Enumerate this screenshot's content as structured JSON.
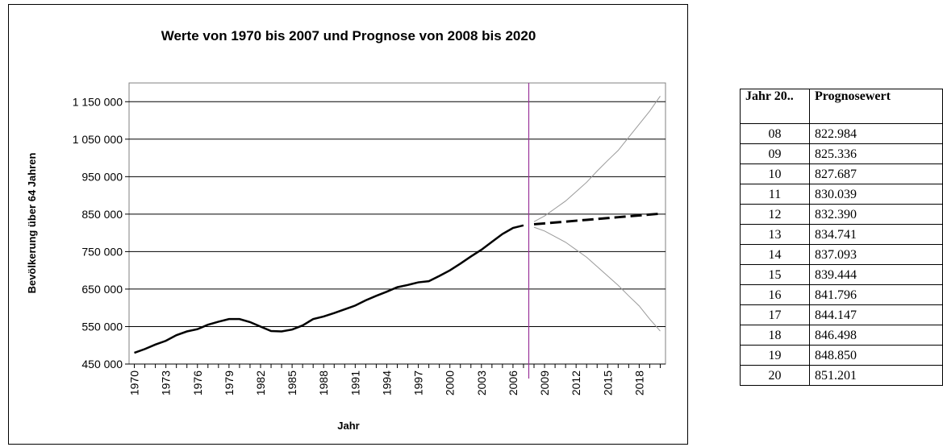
{
  "chart_data": {
    "type": "line",
    "title": "Werte von 1970 bis 2007 und Prognose von 2008 bis 2020",
    "xlabel": "Jahr",
    "ylabel": "Bevölkerung  über 64 Jahren",
    "x": [
      1970,
      1971,
      1972,
      1973,
      1974,
      1975,
      1976,
      1977,
      1978,
      1979,
      1980,
      1981,
      1982,
      1983,
      1984,
      1985,
      1986,
      1987,
      1988,
      1989,
      1990,
      1991,
      1992,
      1993,
      1994,
      1995,
      1996,
      1997,
      1998,
      1999,
      2000,
      2001,
      2002,
      2003,
      2004,
      2005,
      2006,
      2007,
      2008,
      2009,
      2010,
      2011,
      2012,
      2013,
      2014,
      2015,
      2016,
      2017,
      2018,
      2019,
      2020
    ],
    "xlim": [
      1969.5,
      2020.5
    ],
    "xticks": [
      1970,
      1973,
      1976,
      1979,
      1982,
      1985,
      1988,
      1991,
      1994,
      1997,
      2000,
      2003,
      2006,
      2009,
      2012,
      2015,
      2018
    ],
    "ylim": [
      450000,
      1200000
    ],
    "yticks": [
      {
        "value": 450000,
        "label": "450 000"
      },
      {
        "value": 550000,
        "label": "550 000"
      },
      {
        "value": 650000,
        "label": "650 000"
      },
      {
        "value": 750000,
        "label": "750 000"
      },
      {
        "value": 850000,
        "label": "850 000"
      },
      {
        "value": 950000,
        "label": "950 000"
      },
      {
        "value": 1050000,
        "label": "1 050 000"
      },
      {
        "value": 1150000,
        "label": "1 150 000"
      }
    ],
    "grid": true,
    "vline": 2007.5,
    "vline_color": "#993399",
    "series": [
      {
        "color": "#000000",
        "width": 2.5,
        "dash": "none",
        "values": [
          480000,
          490000,
          502000,
          512000,
          527000,
          537000,
          543000,
          555000,
          563000,
          570000,
          570000,
          562000,
          550000,
          538000,
          537000,
          542000,
          553000,
          570000,
          577000,
          586000,
          596000,
          606000,
          620000,
          632000,
          643000,
          655000,
          661000,
          668000,
          671000,
          685000,
          700000,
          718000,
          737000,
          755000,
          776000,
          797000,
          813000,
          820000,
          null,
          null,
          null,
          null,
          null,
          null,
          null,
          null,
          null,
          null,
          null,
          null,
          null
        ]
      },
      {
        "color": "#000000",
        "width": 3,
        "dash": "14 6",
        "values": [
          null,
          null,
          null,
          null,
          null,
          null,
          null,
          null,
          null,
          null,
          null,
          null,
          null,
          null,
          null,
          null,
          null,
          null,
          null,
          null,
          null,
          null,
          null,
          null,
          null,
          null,
          null,
          null,
          null,
          null,
          null,
          null,
          null,
          null,
          null,
          null,
          null,
          null,
          822984,
          825336,
          827687,
          830039,
          832390,
          834741,
          837093,
          839444,
          841796,
          844147,
          846498,
          848850,
          851201
        ]
      },
      {
        "color": "#999999",
        "width": 1,
        "dash": "none",
        "values": [
          null,
          null,
          null,
          null,
          null,
          null,
          null,
          null,
          null,
          null,
          null,
          null,
          null,
          null,
          null,
          null,
          null,
          null,
          null,
          null,
          null,
          null,
          null,
          null,
          null,
          null,
          null,
          null,
          null,
          null,
          null,
          null,
          null,
          null,
          null,
          null,
          null,
          null,
          830000,
          845000,
          865000,
          885000,
          910000,
          935000,
          965000,
          993000,
          1020000,
          1055000,
          1090000,
          1125000,
          1165000
        ]
      },
      {
        "color": "#999999",
        "width": 1,
        "dash": "none",
        "values": [
          null,
          null,
          null,
          null,
          null,
          null,
          null,
          null,
          null,
          null,
          null,
          null,
          null,
          null,
          null,
          null,
          null,
          null,
          null,
          null,
          null,
          null,
          null,
          null,
          null,
          null,
          null,
          null,
          null,
          null,
          null,
          null,
          null,
          null,
          null,
          null,
          null,
          null,
          815000,
          805000,
          790000,
          775000,
          755000,
          735000,
          710000,
          685000,
          660000,
          632000,
          605000,
          570000,
          538000
        ]
      }
    ]
  },
  "table": {
    "header": [
      "Jahr 20..",
      "Prognosewert"
    ],
    "rows": [
      [
        "08",
        "822.984"
      ],
      [
        "09",
        "825.336"
      ],
      [
        "10",
        "827.687"
      ],
      [
        "11",
        "830.039"
      ],
      [
        "12",
        "832.390"
      ],
      [
        "13",
        "834.741"
      ],
      [
        "14",
        "837.093"
      ],
      [
        "15",
        "839.444"
      ],
      [
        "16",
        "841.796"
      ],
      [
        "17",
        "844.147"
      ],
      [
        "18",
        "846.498"
      ],
      [
        "19",
        "848.850"
      ],
      [
        "20",
        "851.201"
      ]
    ]
  }
}
